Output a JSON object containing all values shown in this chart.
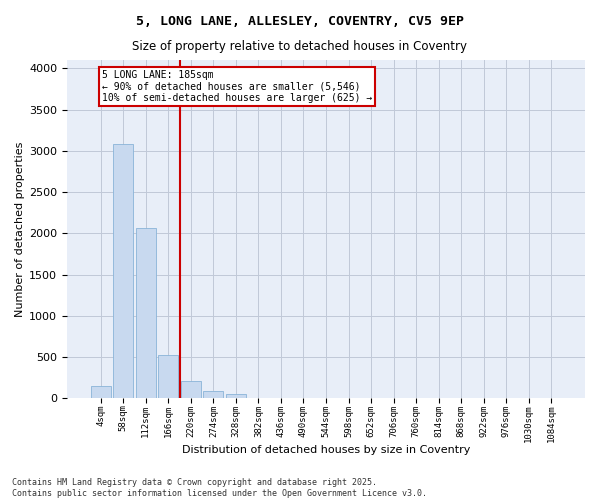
{
  "title_line1": "5, LONG LANE, ALLESLEY, COVENTRY, CV5 9EP",
  "title_line2": "Size of property relative to detached houses in Coventry",
  "xlabel": "Distribution of detached houses by size in Coventry",
  "ylabel": "Number of detached properties",
  "bar_color": "#c8d9ef",
  "bar_edge_color": "#8ab4d8",
  "grid_color": "#c0c8d8",
  "background_color": "#e8eef8",
  "annotation_box_color": "#cc0000",
  "vline_color": "#cc0000",
  "vline_position": 3.5,
  "annotation_text": "5 LONG LANE: 185sqm\n← 90% of detached houses are smaller (5,546)\n10% of semi-detached houses are larger (625) →",
  "footer_text": "Contains HM Land Registry data © Crown copyright and database right 2025.\nContains public sector information licensed under the Open Government Licence v3.0.",
  "categories": [
    "4sqm",
    "58sqm",
    "112sqm",
    "166sqm",
    "220sqm",
    "274sqm",
    "328sqm",
    "382sqm",
    "436sqm",
    "490sqm",
    "544sqm",
    "598sqm",
    "652sqm",
    "706sqm",
    "760sqm",
    "814sqm",
    "868sqm",
    "922sqm",
    "976sqm",
    "1030sqm",
    "1084sqm"
  ],
  "values": [
    150,
    3080,
    2060,
    520,
    215,
    85,
    55,
    5,
    0,
    0,
    0,
    0,
    0,
    0,
    0,
    0,
    0,
    0,
    0,
    0,
    0
  ],
  "ylim": [
    0,
    4100
  ],
  "yticks": [
    0,
    500,
    1000,
    1500,
    2000,
    2500,
    3000,
    3500,
    4000
  ]
}
